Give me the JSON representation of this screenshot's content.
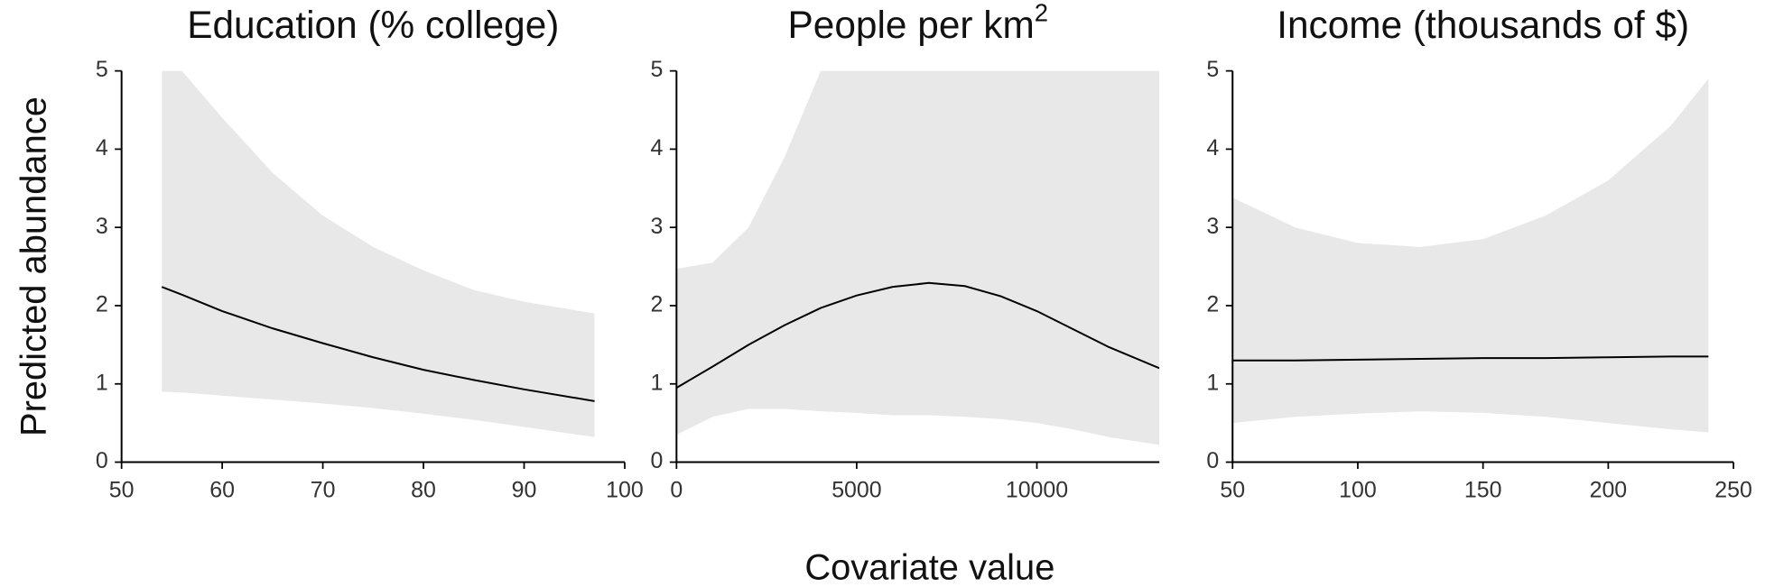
{
  "ylabel": "Predicted abundance",
  "xlabel": "Covariate value",
  "chart_data": [
    {
      "type": "line",
      "title": "Education (% college)",
      "band_color": "#e8e8e8",
      "color": "#000000",
      "x": [
        54,
        56,
        60,
        65,
        70,
        75,
        80,
        85,
        90,
        97
      ],
      "values": [
        2.24,
        2.14,
        1.93,
        1.71,
        1.52,
        1.34,
        1.18,
        1.05,
        0.93,
        0.78
      ],
      "lower": [
        0.9,
        0.89,
        0.85,
        0.8,
        0.75,
        0.69,
        0.62,
        0.54,
        0.45,
        0.32
      ],
      "upper": [
        5,
        5,
        4.4,
        3.7,
        3.15,
        2.75,
        2.45,
        2.2,
        2.05,
        1.9
      ],
      "xlim": [
        50,
        100
      ],
      "xticks": [
        50,
        60,
        70,
        80,
        90,
        100
      ],
      "ylim": [
        0,
        5
      ],
      "yticks": [
        0,
        1,
        2,
        3,
        4,
        5
      ]
    },
    {
      "type": "line",
      "title": "People per km",
      "title_sup": "2",
      "band_color": "#e8e8e8",
      "color": "#000000",
      "x": [
        0,
        1000,
        2000,
        3000,
        4000,
        5000,
        6000,
        7000,
        8000,
        9000,
        10000,
        11000,
        12000,
        13400
      ],
      "values": [
        0.95,
        1.22,
        1.5,
        1.75,
        1.97,
        2.13,
        2.24,
        2.29,
        2.25,
        2.12,
        1.93,
        1.7,
        1.47,
        1.2
      ],
      "lower": [
        0.35,
        0.58,
        0.68,
        0.68,
        0.65,
        0.63,
        0.6,
        0.6,
        0.58,
        0.55,
        0.5,
        0.42,
        0.32,
        0.22
      ],
      "upper": [
        2.47,
        2.55,
        3.0,
        3.9,
        5,
        5,
        5,
        5,
        5,
        5,
        5,
        5,
        5,
        5
      ],
      "xlim": [
        0,
        13400
      ],
      "xticks": [
        0,
        5000,
        10000
      ],
      "ylim": [
        0,
        5
      ],
      "yticks": [
        0,
        1,
        2,
        3,
        4,
        5
      ]
    },
    {
      "type": "line",
      "title": "Income (thousands of $)",
      "band_color": "#e8e8e8",
      "color": "#000000",
      "x": [
        50,
        75,
        100,
        125,
        150,
        175,
        200,
        225,
        240
      ],
      "values": [
        1.3,
        1.3,
        1.31,
        1.32,
        1.33,
        1.33,
        1.34,
        1.35,
        1.35
      ],
      "lower": [
        0.5,
        0.58,
        0.62,
        0.65,
        0.63,
        0.58,
        0.5,
        0.42,
        0.38
      ],
      "upper": [
        3.38,
        3.0,
        2.8,
        2.75,
        2.85,
        3.15,
        3.6,
        4.3,
        4.9
      ],
      "xlim": [
        50,
        250
      ],
      "xticks": [
        50,
        100,
        150,
        200,
        250
      ],
      "ylim": [
        0,
        5
      ],
      "yticks": [
        0,
        1,
        2,
        3,
        4,
        5
      ]
    }
  ]
}
